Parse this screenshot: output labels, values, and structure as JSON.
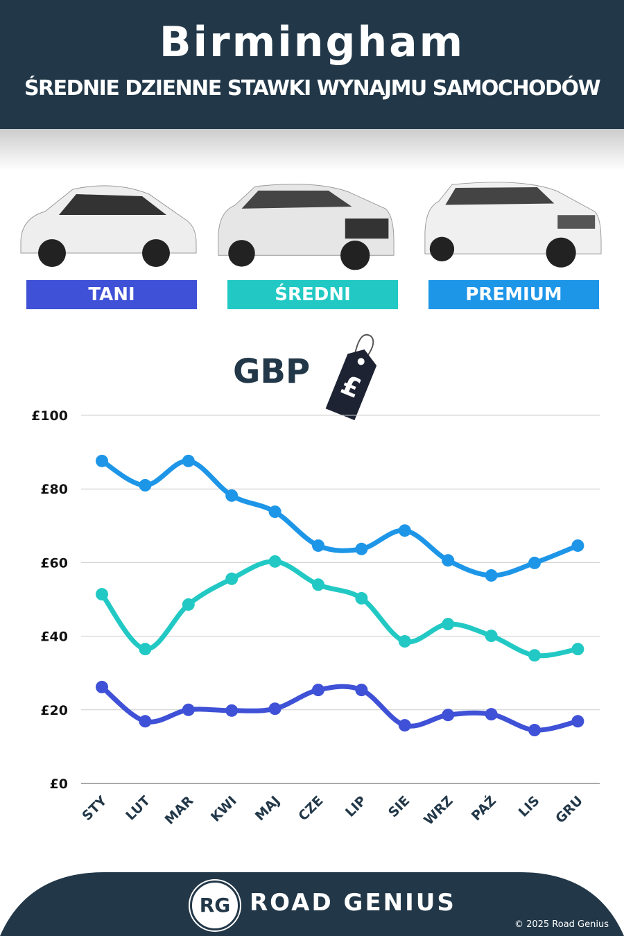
{
  "header": {
    "title": "Birmingham",
    "subtitle": "ŚREDNIE DZIENNE STAWKI WYNAJMU SAMOCHODÓW"
  },
  "categories_badges": [
    {
      "label": "TANI",
      "color": "#3f51d6"
    },
    {
      "label": "ŚREDNI",
      "color": "#22c9c4"
    },
    {
      "label": "PREMIUM",
      "color": "#1e96e8"
    }
  ],
  "currency": {
    "label": "GBP",
    "tag_symbol": "£"
  },
  "chart_data": {
    "type": "line",
    "categories": [
      "STY",
      "LUT",
      "MAR",
      "KWI",
      "MAJ",
      "CZE",
      "LIP",
      "SIE",
      "WRZ",
      "PAŹ",
      "LIS",
      "GRU"
    ],
    "ylim": [
      0,
      100
    ],
    "yticks": [
      0,
      20,
      40,
      60,
      80,
      100
    ],
    "ytick_labels": [
      "£0",
      "£20",
      "£40",
      "£60",
      "£80",
      "£100"
    ],
    "grid": true,
    "series": [
      {
        "name": "PREMIUM",
        "color": "#1e96e8",
        "values": [
          87.6,
          81,
          87.6,
          78.2,
          73.8,
          64.6,
          63.7,
          68.7,
          60.6,
          56.5,
          59.9,
          64.6
        ]
      },
      {
        "name": "ŚREDNI",
        "color": "#22c9c4",
        "values": [
          51.4,
          36.5,
          48.6,
          55.6,
          60.3,
          54,
          50.3,
          38.6,
          43.3,
          40.1,
          34.8,
          36.5
        ]
      },
      {
        "name": "TANI",
        "color": "#3f51d6",
        "values": [
          26.2,
          16.9,
          20,
          19.8,
          20.3,
          25.4,
          25.4,
          15.8,
          18.6,
          18.8,
          14.5,
          16.9
        ]
      }
    ]
  },
  "footer": {
    "logo": "RG",
    "brand": "ROAD GENIUS",
    "copyright": "© 2025 Road Genius"
  }
}
